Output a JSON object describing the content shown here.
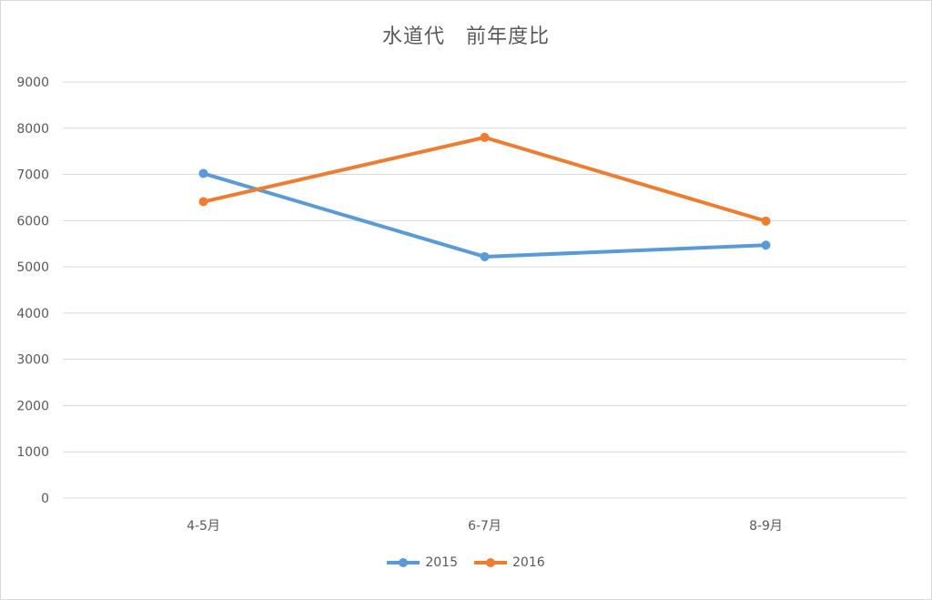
{
  "chart_data": {
    "type": "line",
    "title": "水道代　前年度比",
    "categories": [
      "4-5月",
      "6-7月",
      "8-9月"
    ],
    "series": [
      {
        "name": "2015",
        "values": [
          7020,
          5220,
          5470
        ],
        "color": "#5b9bd5"
      },
      {
        "name": "2016",
        "values": [
          6410,
          7800,
          5990
        ],
        "color": "#ed7d31"
      }
    ],
    "ylim": [
      0,
      9000
    ],
    "yticks": [
      "0",
      "1000",
      "2000",
      "3000",
      "4000",
      "5000",
      "6000",
      "7000",
      "8000",
      "9000"
    ],
    "grid": true,
    "legend_position": "bottom",
    "xlabel": "",
    "ylabel": ""
  }
}
